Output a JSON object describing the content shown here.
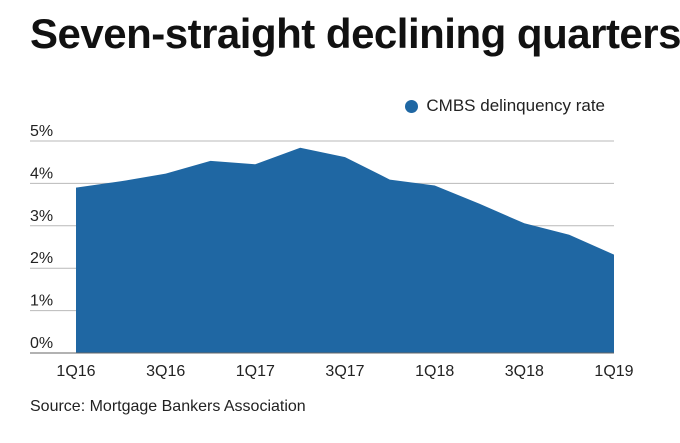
{
  "header": {
    "title": "Seven-straight declining quarters"
  },
  "source": "Source: Mortgage Bankers Association",
  "chart_data": {
    "type": "area",
    "title": "Seven-straight declining quarters",
    "xlabel": "",
    "ylabel": "",
    "x": [
      "1Q16",
      "2Q16",
      "3Q16",
      "4Q16",
      "1Q17",
      "2Q17",
      "3Q17",
      "4Q17",
      "1Q18",
      "2Q18",
      "3Q18",
      "4Q18",
      "1Q19"
    ],
    "x_tick_labels": [
      "1Q16",
      "3Q16",
      "1Q17",
      "3Q17",
      "1Q18",
      "3Q18",
      "1Q19"
    ],
    "series": [
      {
        "name": "CMBS delinquency rate",
        "color": "#1f67a3",
        "values": [
          3.9,
          4.05,
          4.23,
          4.53,
          4.45,
          4.84,
          4.62,
          4.09,
          3.95,
          3.52,
          3.06,
          2.79,
          2.32
        ]
      }
    ],
    "ylim": [
      0,
      5
    ],
    "y_ticks": [
      "0%",
      "1%",
      "2%",
      "3%",
      "4%",
      "5%"
    ],
    "grid": true,
    "legend_position": "top-right"
  }
}
